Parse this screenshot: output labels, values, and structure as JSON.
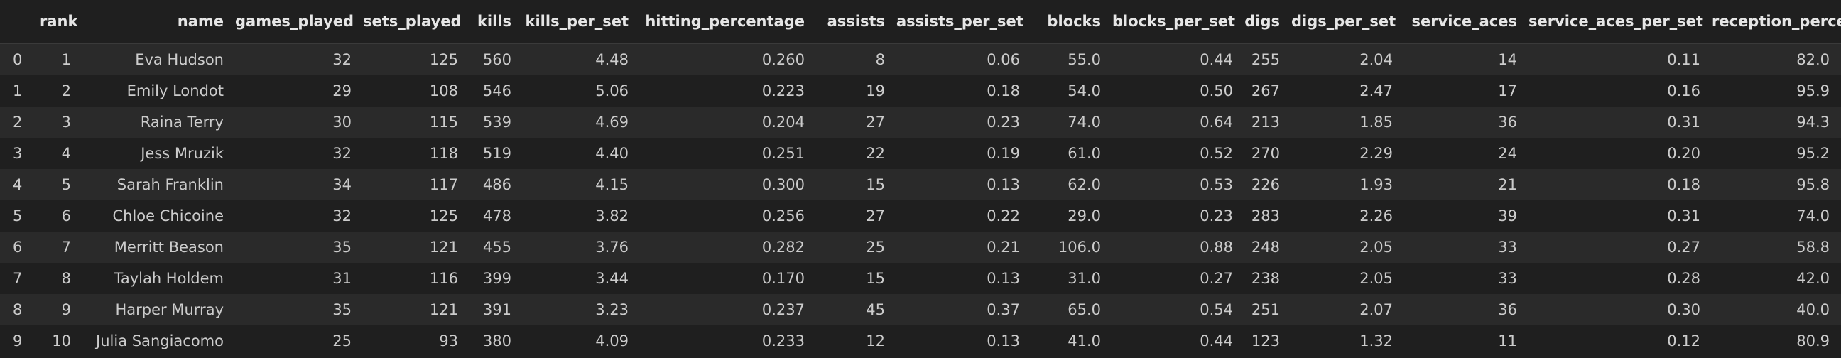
{
  "table": {
    "columns": [
      "",
      "rank",
      "name",
      "games_played",
      "sets_played",
      "kills",
      "kills_per_set",
      "hitting_percentage",
      "assists",
      "assists_per_set",
      "blocks",
      "blocks_per_set",
      "digs",
      "digs_per_set",
      "service_aces",
      "service_aces_per_set",
      "reception_percentage"
    ],
    "rows": [
      {
        "index": "0",
        "cells": [
          "1",
          "Eva Hudson",
          "32",
          "125",
          "560",
          "4.48",
          "0.260",
          "8",
          "0.06",
          "55.0",
          "0.44",
          "255",
          "2.04",
          "14",
          "0.11",
          "82.0"
        ]
      },
      {
        "index": "1",
        "cells": [
          "2",
          "Emily Londot",
          "29",
          "108",
          "546",
          "5.06",
          "0.223",
          "19",
          "0.18",
          "54.0",
          "0.50",
          "267",
          "2.47",
          "17",
          "0.16",
          "95.9"
        ]
      },
      {
        "index": "2",
        "cells": [
          "3",
          "Raina Terry",
          "30",
          "115",
          "539",
          "4.69",
          "0.204",
          "27",
          "0.23",
          "74.0",
          "0.64",
          "213",
          "1.85",
          "36",
          "0.31",
          "94.3"
        ]
      },
      {
        "index": "3",
        "cells": [
          "4",
          "Jess Mruzik",
          "32",
          "118",
          "519",
          "4.40",
          "0.251",
          "22",
          "0.19",
          "61.0",
          "0.52",
          "270",
          "2.29",
          "24",
          "0.20",
          "95.2"
        ]
      },
      {
        "index": "4",
        "cells": [
          "5",
          "Sarah Franklin",
          "34",
          "117",
          "486",
          "4.15",
          "0.300",
          "15",
          "0.13",
          "62.0",
          "0.53",
          "226",
          "1.93",
          "21",
          "0.18",
          "95.8"
        ]
      },
      {
        "index": "5",
        "cells": [
          "6",
          "Chloe Chicoine",
          "32",
          "125",
          "478",
          "3.82",
          "0.256",
          "27",
          "0.22",
          "29.0",
          "0.23",
          "283",
          "2.26",
          "39",
          "0.31",
          "74.0"
        ]
      },
      {
        "index": "6",
        "cells": [
          "7",
          "Merritt Beason",
          "35",
          "121",
          "455",
          "3.76",
          "0.282",
          "25",
          "0.21",
          "106.0",
          "0.88",
          "248",
          "2.05",
          "33",
          "0.27",
          "58.8"
        ]
      },
      {
        "index": "7",
        "cells": [
          "8",
          "Taylah Holdem",
          "31",
          "116",
          "399",
          "3.44",
          "0.170",
          "15",
          "0.13",
          "31.0",
          "0.27",
          "238",
          "2.05",
          "33",
          "0.28",
          "42.0"
        ]
      },
      {
        "index": "8",
        "cells": [
          "9",
          "Harper Murray",
          "35",
          "121",
          "391",
          "3.23",
          "0.237",
          "45",
          "0.37",
          "65.0",
          "0.54",
          "251",
          "2.07",
          "36",
          "0.30",
          "40.0"
        ]
      },
      {
        "index": "9",
        "cells": [
          "10",
          "Julia Sangiacomo",
          "25",
          "93",
          "380",
          "4.09",
          "0.233",
          "12",
          "0.13",
          "41.0",
          "0.44",
          "123",
          "1.32",
          "11",
          "0.12",
          "80.9"
        ]
      }
    ]
  }
}
